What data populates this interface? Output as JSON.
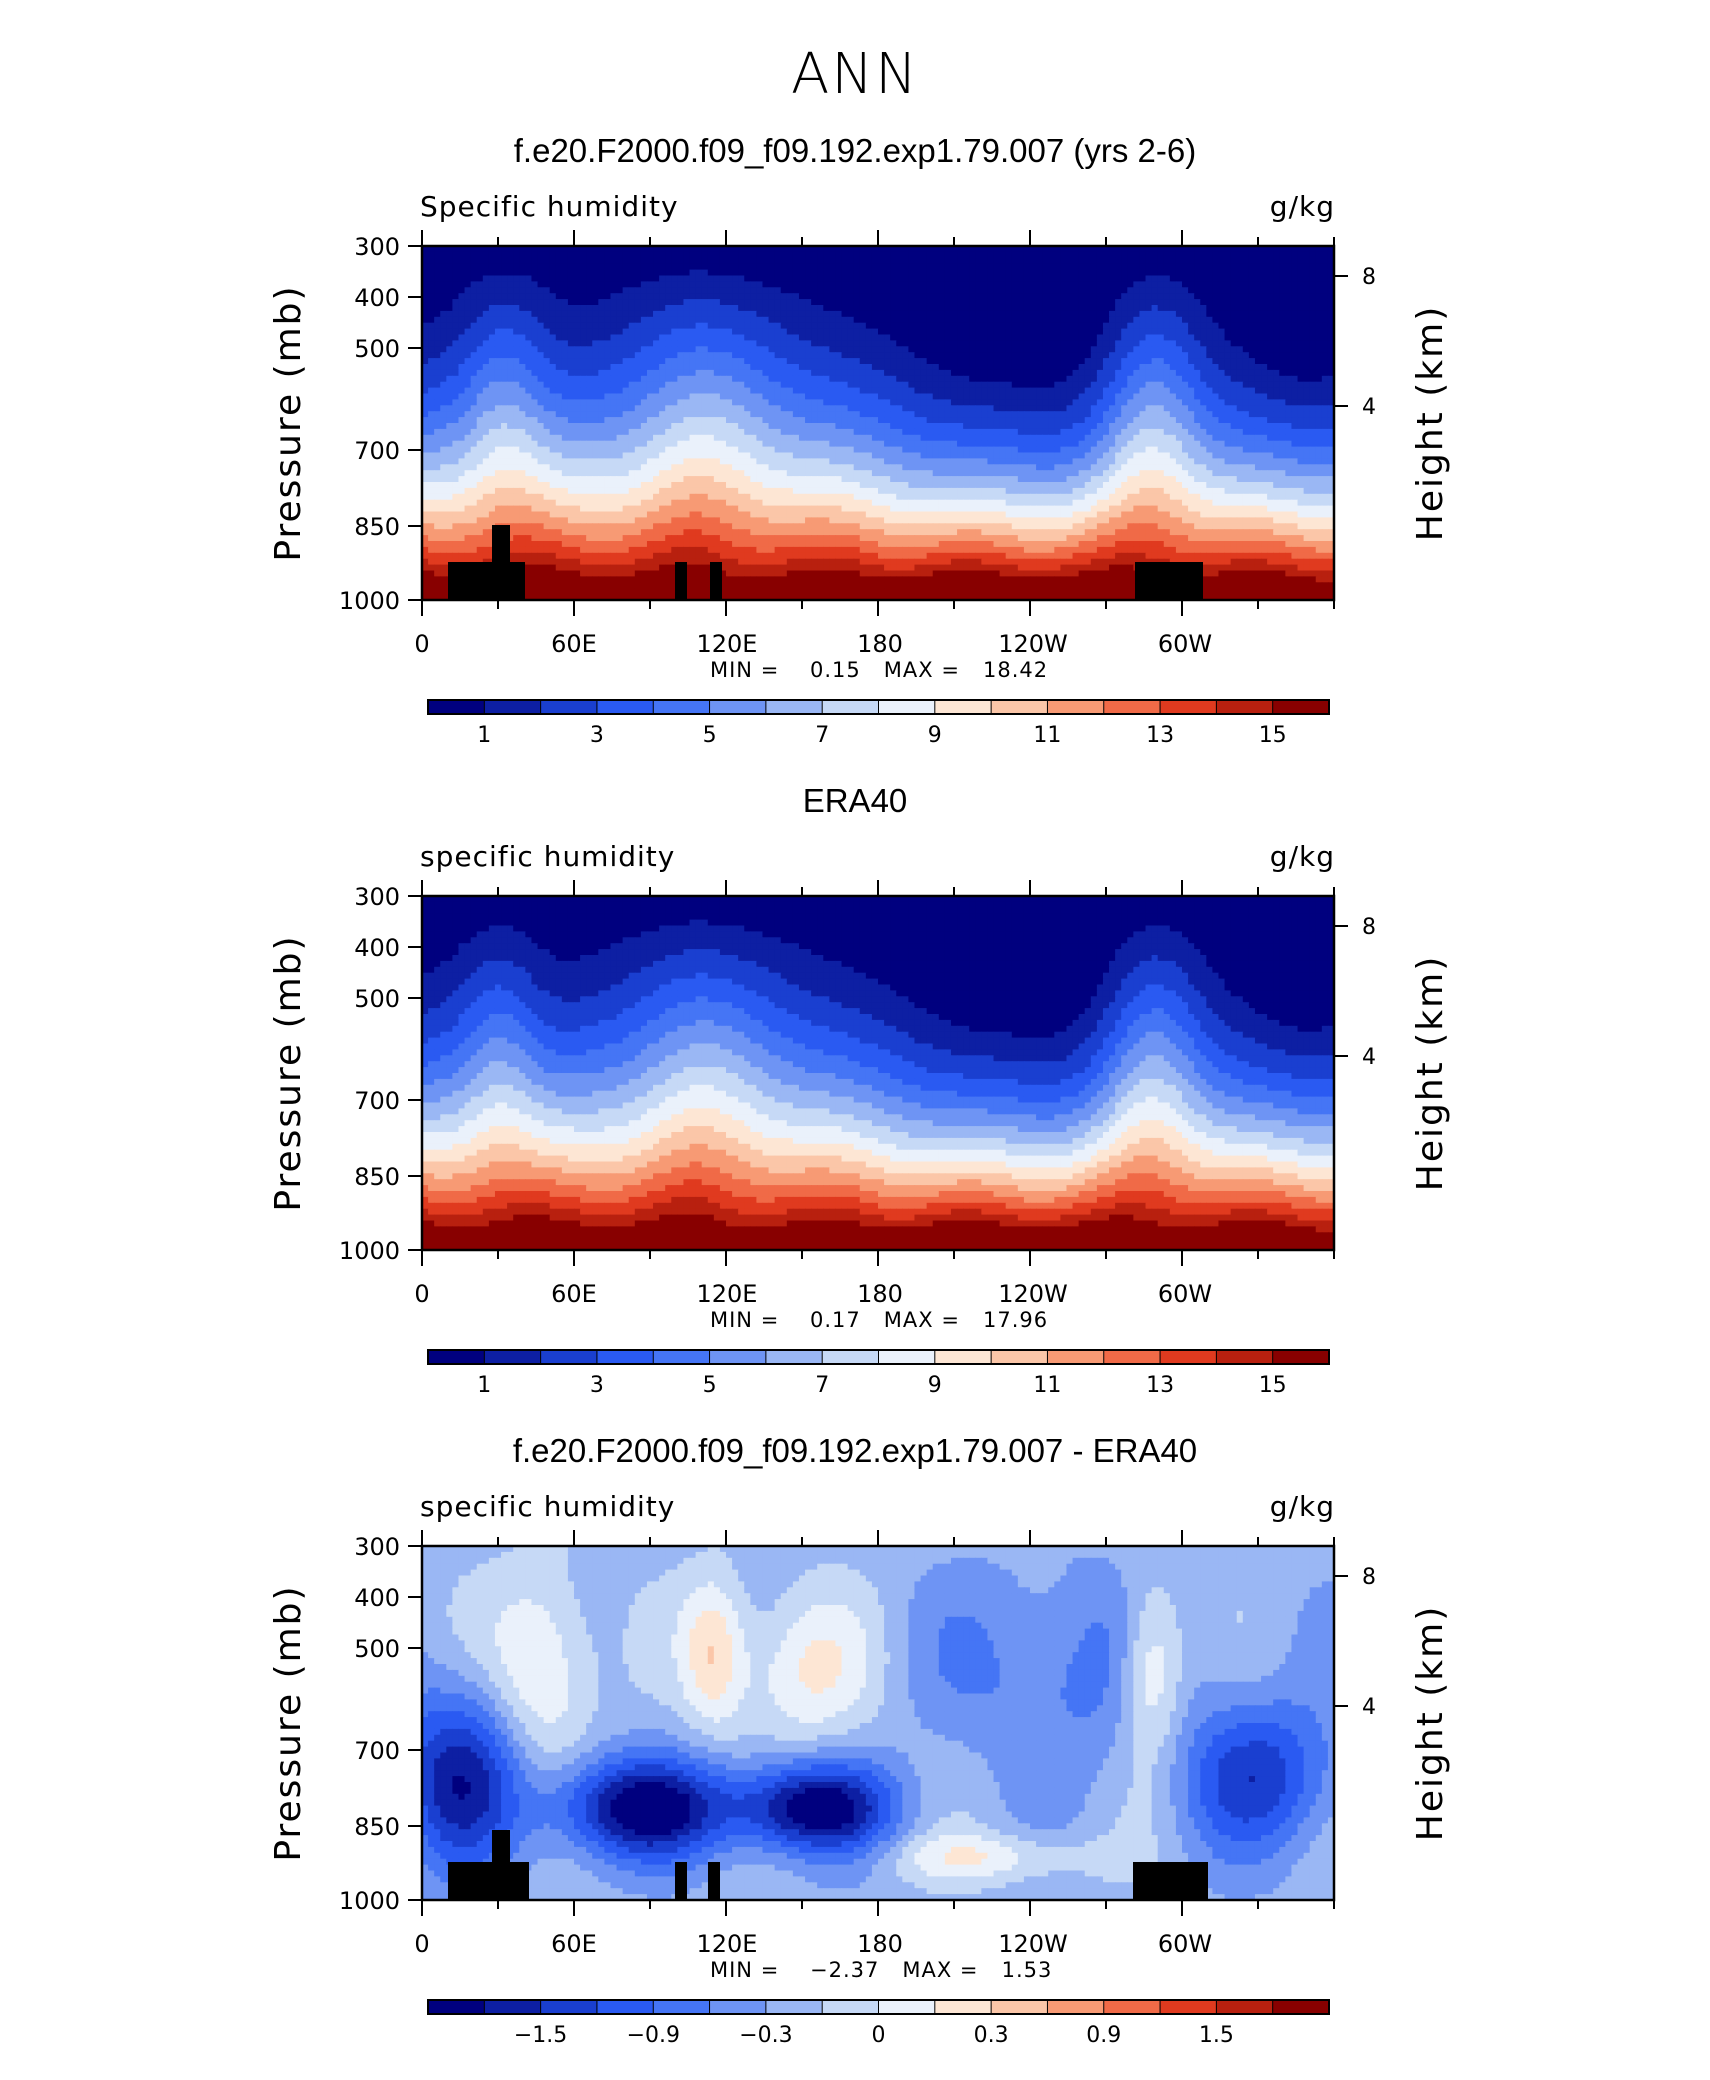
{
  "page": {
    "title": "ANN"
  },
  "chart_data": [
    {
      "type": "heatmap",
      "title": "f.e20.F2000.f09_f09.192.exp1.79.007 (yrs 2-6)",
      "variable": "Specific humidity",
      "units": "g/kg",
      "ylabel": "Pressure (mb)",
      "ylabel_right": "Height (km)",
      "x_ticks": [
        "0",
        "60E",
        "120E",
        "180",
        "120W",
        "60W"
      ],
      "y_ticks": [
        "300",
        "400",
        "500",
        "700",
        "850",
        "1000"
      ],
      "y_ticks_right": [
        "8",
        "4"
      ],
      "min_label": "MIN =",
      "min_value": "0.15",
      "max_label": "MAX =",
      "max_value": "18.42",
      "colorbar_labels": [
        "1",
        "3",
        "5",
        "7",
        "9",
        "11",
        "13",
        "15"
      ],
      "colorbar_colors": [
        "#00007f",
        "#0d1fa3",
        "#1a3fd0",
        "#2a5af2",
        "#4575f5",
        "#6e94f4",
        "#9ab7f4",
        "#c6d9f6",
        "#eaf1fb",
        "#fde6d4",
        "#fbc6a8",
        "#f79a74",
        "#f06a47",
        "#e03a1f",
        "#b8200f",
        "#880000"
      ]
    },
    {
      "type": "heatmap",
      "title": "ERA40",
      "variable": "specific humidity",
      "units": "g/kg",
      "ylabel": "Pressure (mb)",
      "ylabel_right": "Height (km)",
      "x_ticks": [
        "0",
        "60E",
        "120E",
        "180",
        "120W",
        "60W"
      ],
      "y_ticks": [
        "300",
        "400",
        "500",
        "700",
        "850",
        "1000"
      ],
      "y_ticks_right": [
        "8",
        "4"
      ],
      "min_label": "MIN =",
      "min_value": "0.17",
      "max_label": "MAX =",
      "max_value": "17.96",
      "colorbar_labels": [
        "1",
        "3",
        "5",
        "7",
        "9",
        "11",
        "13",
        "15"
      ],
      "colorbar_colors": [
        "#00007f",
        "#0d1fa3",
        "#1a3fd0",
        "#2a5af2",
        "#4575f5",
        "#6e94f4",
        "#9ab7f4",
        "#c6d9f6",
        "#eaf1fb",
        "#fde6d4",
        "#fbc6a8",
        "#f79a74",
        "#f06a47",
        "#e03a1f",
        "#b8200f",
        "#880000"
      ]
    },
    {
      "type": "heatmap",
      "title": "f.e20.F2000.f09_f09.192.exp1.79.007 - ERA40",
      "variable": "specific humidity",
      "units": "g/kg",
      "ylabel": "Pressure (mb)",
      "ylabel_right": "Height (km)",
      "x_ticks": [
        "0",
        "60E",
        "120E",
        "180",
        "120W",
        "60W"
      ],
      "y_ticks": [
        "300",
        "400",
        "500",
        "700",
        "850",
        "1000"
      ],
      "y_ticks_right": [
        "8",
        "4"
      ],
      "min_label": "MIN =",
      "min_value": "−2.37",
      "max_label": "MAX =",
      "max_value": "1.53",
      "colorbar_labels": [
        "−1.5",
        "−0.9",
        "−0.3",
        "0",
        "0.3",
        "0.9",
        "1.5"
      ],
      "colorbar_colors": [
        "#00007f",
        "#0d1fa3",
        "#1a3fd0",
        "#2a5af2",
        "#4575f5",
        "#6e94f4",
        "#9ab7f4",
        "#c6d9f6",
        "#eaf1fb",
        "#fde6d4",
        "#fbc6a8",
        "#f79a74",
        "#f06a47",
        "#e03a1f",
        "#b8200f",
        "#880000"
      ]
    }
  ]
}
